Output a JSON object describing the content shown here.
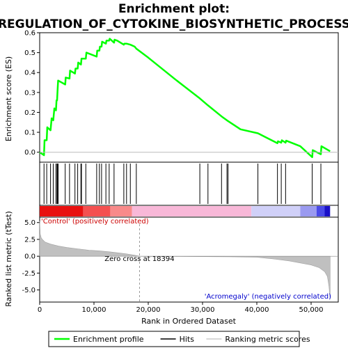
{
  "chart_data": {
    "type": "line",
    "title_line1": "Enrichment plot:",
    "title_line2": "REGULATION_OF_CYTOKINE_BIOSYNTHETIC_PROCESS",
    "ylabel_top": "Enrichment score (ES)",
    "ylabel_bottom": "Ranked list metric (tTest)",
    "xlabel": "Rank in Ordered Dataset",
    "es_ylim": [
      -0.05,
      0.6
    ],
    "es_yticks": [
      "0.0",
      "0.1",
      "0.2",
      "0.3",
      "0.4",
      "0.5",
      "0.6"
    ],
    "metric_ylim": [
      -6.8,
      5.8
    ],
    "metric_yticks": [
      "5.0",
      "2.5",
      "0.0",
      "-2.5",
      "-5.0"
    ],
    "xlim": [
      0,
      55000
    ],
    "xticks": [
      "0",
      "10,000",
      "20,000",
      "30,000",
      "40,000",
      "50,000"
    ],
    "zero_cross_label": "Zero cross at 18394",
    "zero_cross_rank": 18394,
    "pos_label": "'Control' (positively correlated)",
    "neg_label": "'Acromegaly' (negatively correlated)",
    "enrichment_profile": {
      "name": "Enrichment profile",
      "color": "#00ff00",
      "x": [
        0,
        800,
        900,
        1300,
        1400,
        2000,
        2200,
        2500,
        2700,
        3000,
        3100,
        3200,
        3300,
        3400,
        4700,
        4800,
        5500,
        5600,
        6500,
        6600,
        7000,
        7100,
        7600,
        7700,
        8500,
        8600,
        10500,
        10600,
        11000,
        11100,
        11400,
        11500,
        12200,
        12300,
        12800,
        12900,
        13700,
        13800,
        14300,
        15500,
        15600,
        16000,
        16700,
        17500,
        17800,
        20000,
        25000,
        29500,
        31000,
        33500,
        34500,
        37000,
        40200,
        43800,
        43900,
        44500,
        44600,
        45300,
        45400,
        48000,
        50200,
        50300,
        51800,
        51900,
        53500
      ],
      "y": [
        0.0,
        -0.015,
        0.06,
        0.06,
        0.125,
        0.11,
        0.17,
        0.16,
        0.22,
        0.21,
        0.26,
        0.26,
        0.31,
        0.36,
        0.34,
        0.375,
        0.37,
        0.41,
        0.395,
        0.42,
        0.42,
        0.45,
        0.44,
        0.47,
        0.47,
        0.5,
        0.48,
        0.51,
        0.51,
        0.53,
        0.53,
        0.555,
        0.545,
        0.56,
        0.56,
        0.57,
        0.55,
        0.565,
        0.56,
        0.54,
        0.545,
        0.545,
        0.54,
        0.53,
        0.52,
        0.475,
        0.365,
        0.27,
        0.235,
        0.18,
        0.16,
        0.115,
        0.095,
        0.045,
        0.055,
        0.048,
        0.06,
        0.048,
        0.058,
        0.03,
        -0.025,
        0.01,
        -0.01,
        0.03,
        0.005
      ]
    },
    "hits": {
      "name": "Hits",
      "color": "#000000",
      "x": [
        800,
        1300,
        2000,
        2500,
        3000,
        3200,
        3300,
        3400,
        4700,
        5500,
        6500,
        7000,
        7600,
        7700,
        8500,
        10500,
        11000,
        11400,
        12200,
        12800,
        13700,
        15500,
        16000,
        16700,
        17800,
        29500,
        31000,
        33500,
        34500,
        34700,
        40200,
        43800,
        44500,
        45300,
        50200,
        51800
      ]
    },
    "ranking_metric": {
      "name": "Ranking metric scores",
      "color": "#c0c0c0",
      "x": [
        0,
        100,
        300,
        600,
        1000,
        2000,
        3500,
        5000,
        7000,
        9000,
        11000,
        13000,
        14500,
        16000,
        17500,
        18394,
        20000,
        25000,
        30000,
        35000,
        40000,
        43000,
        46000,
        48000,
        50000,
        51500,
        52500,
        53000,
        53300,
        53500
      ],
      "y": [
        5.2,
        3.3,
        2.7,
        2.4,
        2.1,
        1.8,
        1.5,
        1.3,
        1.1,
        0.9,
        0.8,
        0.65,
        0.5,
        0.35,
        0.15,
        0.0,
        -0.02,
        -0.04,
        -0.06,
        -0.08,
        -0.15,
        -0.4,
        -0.7,
        -1.0,
        -1.3,
        -1.7,
        -2.3,
        -3.0,
        -4.5,
        -6.4
      ]
    },
    "colorbar": {
      "segments": [
        {
          "from": 0,
          "to": 8000,
          "color": "#e8100f"
        },
        {
          "from": 8000,
          "to": 13000,
          "color": "#f45050"
        },
        {
          "from": 13000,
          "to": 17000,
          "color": "#f88a8a"
        },
        {
          "from": 17000,
          "to": 39000,
          "color": "#f8b8d8"
        },
        {
          "from": 39000,
          "to": 48000,
          "color": "#d0d0f8"
        },
        {
          "from": 48000,
          "to": 51000,
          "color": "#9a9af0"
        },
        {
          "from": 51000,
          "to": 52500,
          "color": "#4a4ae8"
        },
        {
          "from": 52500,
          "to": 53500,
          "color": "#1a10c8"
        }
      ]
    },
    "legend": [
      {
        "label": "Enrichment profile",
        "color": "#00ff00"
      },
      {
        "label": "Hits",
        "color": "#000000"
      },
      {
        "label": "Ranking metric scores",
        "color": "#c0c0c0"
      }
    ]
  }
}
